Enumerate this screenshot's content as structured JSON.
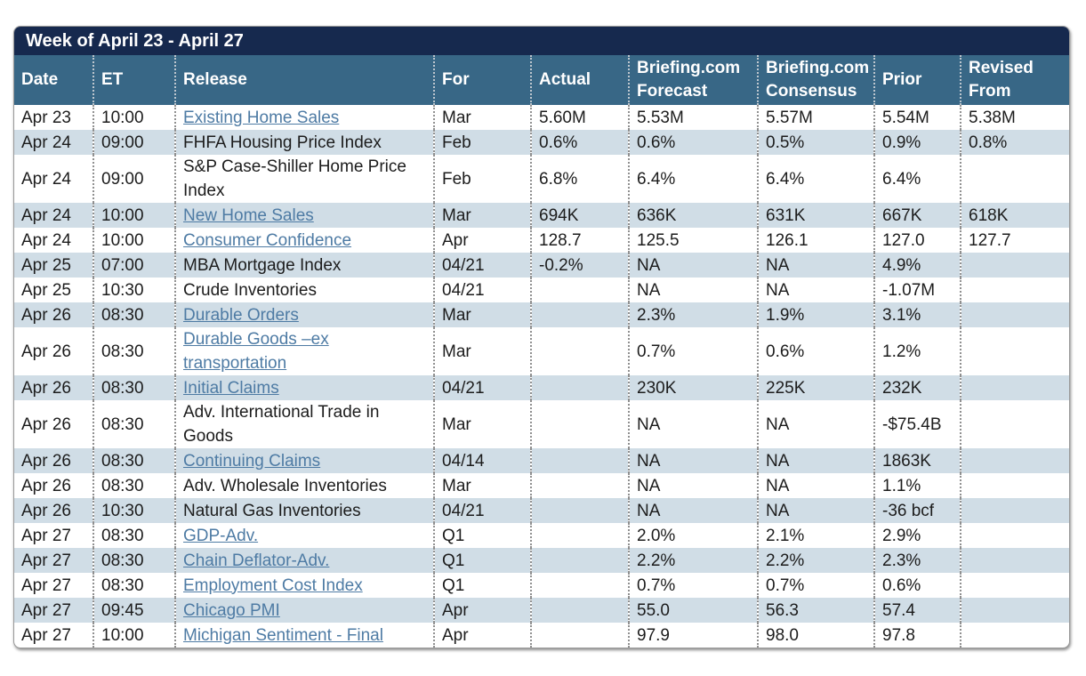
{
  "title": "Week of April 23 - April 27",
  "colors": {
    "title_bar": "#16294E",
    "header_background": "#386786",
    "alt_row_background": "#D0DDE6",
    "link_color": "#4E7BA4",
    "body_text": "#1C1C1C"
  },
  "table": {
    "columns": [
      {
        "label": "Date"
      },
      {
        "label": "ET"
      },
      {
        "label": "Release"
      },
      {
        "label": "For"
      },
      {
        "label": "Actual"
      },
      {
        "label": "Briefing.com Forecast"
      },
      {
        "label": "Briefing.com Consensus"
      },
      {
        "label": "Prior"
      },
      {
        "label": "Revised From"
      }
    ],
    "rows": [
      {
        "date": "Apr 23",
        "et": "10:00",
        "release": "Existing Home Sales",
        "is_link": true,
        "for": "Mar",
        "actual": "5.60M",
        "forecast": "5.53M",
        "consensus": "5.57M",
        "prior": "5.54M",
        "revised": "5.38M"
      },
      {
        "date": "Apr 24",
        "et": "09:00",
        "release": "FHFA Housing Price Index",
        "is_link": false,
        "for": "Feb",
        "actual": "0.6%",
        "forecast": "0.6%",
        "consensus": "0.5%",
        "prior": "0.9%",
        "revised": "0.8%"
      },
      {
        "date": "Apr 24",
        "et": "09:00",
        "release": "S&P Case-Shiller Home Price Index",
        "is_link": false,
        "for": "Feb",
        "actual": "6.8%",
        "forecast": "6.4%",
        "consensus": "6.4%",
        "prior": "6.4%",
        "revised": ""
      },
      {
        "date": "Apr 24",
        "et": "10:00",
        "release": "New Home Sales",
        "is_link": true,
        "for": "Mar",
        "actual": "694K",
        "forecast": "636K",
        "consensus": "631K",
        "prior": "667K",
        "revised": "618K"
      },
      {
        "date": "Apr 24",
        "et": "10:00",
        "release": "Consumer Confidence",
        "is_link": true,
        "for": "Apr",
        "actual": "128.7",
        "forecast": "125.5",
        "consensus": "126.1",
        "prior": "127.0",
        "revised": "127.7"
      },
      {
        "date": "Apr 25",
        "et": "07:00",
        "release": "MBA Mortgage Index",
        "is_link": false,
        "for": "04/21",
        "actual": "-0.2%",
        "forecast": "NA",
        "consensus": "NA",
        "prior": "4.9%",
        "revised": ""
      },
      {
        "date": "Apr 25",
        "et": "10:30",
        "release": "Crude Inventories",
        "is_link": false,
        "for": "04/21",
        "actual": "",
        "forecast": "NA",
        "consensus": "NA",
        "prior": "-1.07M",
        "revised": ""
      },
      {
        "date": "Apr 26",
        "et": "08:30",
        "release": "Durable Orders",
        "is_link": true,
        "for": "Mar",
        "actual": "",
        "forecast": "2.3%",
        "consensus": "1.9%",
        "prior": "3.1%",
        "revised": ""
      },
      {
        "date": "Apr 26",
        "et": "08:30",
        "release": "Durable Goods –ex transportation",
        "is_link": true,
        "for": "Mar",
        "actual": "",
        "forecast": "0.7%",
        "consensus": "0.6%",
        "prior": "1.2%",
        "revised": ""
      },
      {
        "date": "Apr 26",
        "et": "08:30",
        "release": "Initial Claims",
        "is_link": true,
        "for": "04/21",
        "actual": "",
        "forecast": "230K",
        "consensus": "225K",
        "prior": "232K",
        "revised": ""
      },
      {
        "date": "Apr 26",
        "et": "08:30",
        "release": "Adv. International Trade in Goods",
        "is_link": false,
        "for": "Mar",
        "actual": "",
        "forecast": "NA",
        "consensus": "NA",
        "prior": "-$75.4B",
        "revised": ""
      },
      {
        "date": "Apr 26",
        "et": "08:30",
        "release": "Continuing Claims",
        "is_link": true,
        "for": "04/14",
        "actual": "",
        "forecast": "NA",
        "consensus": "NA",
        "prior": "1863K",
        "revised": ""
      },
      {
        "date": "Apr 26",
        "et": "08:30",
        "release": "Adv. Wholesale Inventories",
        "is_link": false,
        "for": "Mar",
        "actual": "",
        "forecast": "NA",
        "consensus": "NA",
        "prior": "1.1%",
        "revised": ""
      },
      {
        "date": "Apr 26",
        "et": "10:30",
        "release": "Natural Gas Inventories",
        "is_link": false,
        "for": "04/21",
        "actual": "",
        "forecast": "NA",
        "consensus": "NA",
        "prior": "-36 bcf",
        "revised": ""
      },
      {
        "date": "Apr 27",
        "et": "08:30",
        "release": "GDP-Adv.",
        "is_link": true,
        "for": "Q1",
        "actual": "",
        "forecast": "2.0%",
        "consensus": "2.1%",
        "prior": "2.9%",
        "revised": ""
      },
      {
        "date": "Apr 27",
        "et": "08:30",
        "release": "Chain Deflator-Adv.",
        "is_link": true,
        "for": "Q1",
        "actual": "",
        "forecast": "2.2%",
        "consensus": "2.2%",
        "prior": "2.3%",
        "revised": ""
      },
      {
        "date": "Apr 27",
        "et": "08:30",
        "release": "Employment Cost Index",
        "is_link": true,
        "for": "Q1",
        "actual": "",
        "forecast": "0.7%",
        "consensus": "0.7%",
        "prior": "0.6%",
        "revised": ""
      },
      {
        "date": "Apr 27",
        "et": "09:45",
        "release": "Chicago PMI",
        "is_link": true,
        "for": "Apr",
        "actual": "",
        "forecast": "55.0",
        "consensus": "56.3",
        "prior": "57.4",
        "revised": ""
      },
      {
        "date": "Apr 27",
        "et": "10:00",
        "release": "Michigan Sentiment - Final",
        "is_link": true,
        "for": "Apr",
        "actual": "",
        "forecast": "97.9",
        "consensus": "98.0",
        "prior": "97.8",
        "revised": ""
      }
    ]
  }
}
